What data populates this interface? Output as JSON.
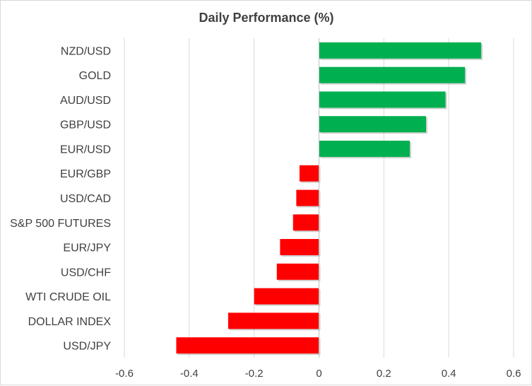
{
  "chart_data": {
    "type": "bar",
    "orientation": "horizontal",
    "title": "Daily Performance (%)",
    "xlabel": "",
    "ylabel": "",
    "xlim": [
      -0.6,
      0.6
    ],
    "xticks": [
      -0.6,
      -0.4,
      -0.2,
      0,
      0.2,
      0.4,
      0.6
    ],
    "xtick_labels": [
      "-0.6",
      "-0.4",
      "-0.2",
      "0",
      "0.2",
      "0.4",
      "0.6"
    ],
    "grid": "vertical",
    "legend": "none",
    "categories": [
      "NZD/USD",
      "GOLD",
      "AUD/USD",
      "GBP/USD",
      "EUR/USD",
      "EUR/GBP",
      "USD/CAD",
      "S&P 500 FUTURES",
      "EUR/JPY",
      "USD/CHF",
      "WTI CRUDE OIL",
      "DOLLAR INDEX",
      "USD/JPY"
    ],
    "values": [
      0.5,
      0.45,
      0.39,
      0.33,
      0.28,
      -0.06,
      -0.07,
      -0.08,
      -0.12,
      -0.13,
      -0.2,
      -0.28,
      -0.44
    ],
    "colors": {
      "positive": "#00b050",
      "negative": "#ff0000"
    }
  }
}
